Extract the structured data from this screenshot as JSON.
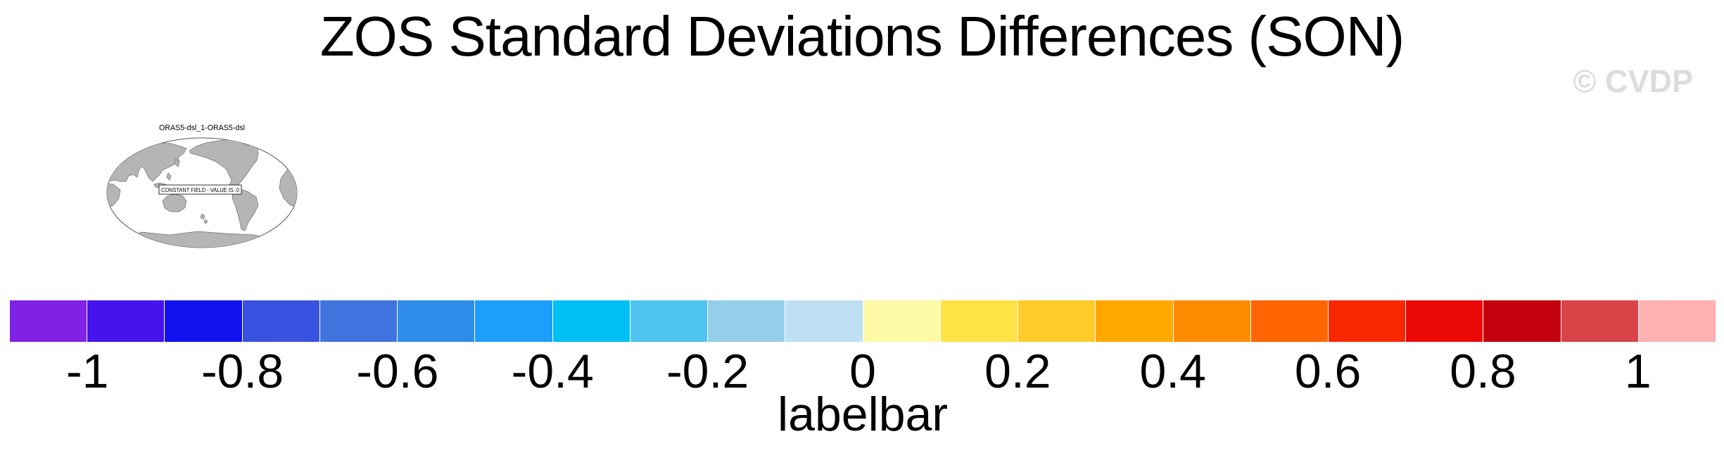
{
  "header": {
    "title": "ZOS Standard Deviations Differences (SON)",
    "watermark": "© CVDP"
  },
  "map": {
    "label": "ORAS5-dsl_1-ORAS5-dsl",
    "annotation": "CONSTANT FIELD - VALUE IS .0",
    "land_color": "#b5b5b5",
    "coast_color": "#707070",
    "outline_color": "#555555",
    "background": "#ffffff"
  },
  "chart_data": {
    "type": "labelbar",
    "title": "labelbar",
    "orientation": "horizontal",
    "tick_labels": [
      "-1",
      "-0.8",
      "-0.6",
      "-0.4",
      "-0.2",
      "0",
      "0.2",
      "0.4",
      "0.6",
      "0.8",
      "1"
    ],
    "tick_values": [
      -1,
      -0.8,
      -0.6,
      -0.4,
      -0.2,
      0,
      0.2,
      0.4,
      0.6,
      0.8,
      1
    ],
    "range_min": -1.1,
    "range_max": 1.1,
    "segment_value_width": 0.1,
    "segment_count": 22,
    "segment_colors": [
      "#8021E6",
      "#4513EE",
      "#1212F0",
      "#3A52E0",
      "#4173DF",
      "#2F8CE9",
      "#1C9FFB",
      "#00BFF4",
      "#4EC3F0",
      "#94CFE9",
      "#BFE0F2",
      "#FDF9A7",
      "#FFE345",
      "#FFCB2A",
      "#FFA800",
      "#FF8C00",
      "#FF6400",
      "#FA2800",
      "#ED0808",
      "#C4000C",
      "#D94448",
      "#FFB0B1"
    ],
    "ticks_at_segment_boundaries": true,
    "caption_label": "labelbar"
  }
}
